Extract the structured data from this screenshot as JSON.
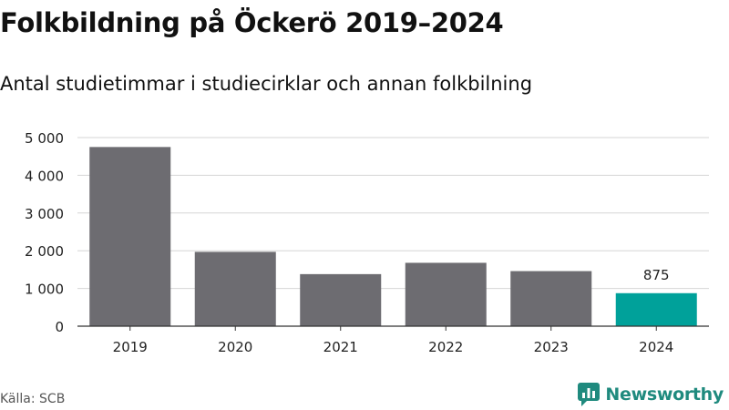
{
  "title": "Folkbildning på Öckerö 2019–2024",
  "subtitle": "Antal studietimmar i studiecirklar och annan folkbilning",
  "source": "Källa: SCB",
  "brand": {
    "name": "Newsworthy",
    "icon": "newsworthy-logo-icon",
    "color": "#1f8a7e"
  },
  "colors": {
    "bar": "#6d6c71",
    "highlight": "#00a19a",
    "grid": "#d6d6d6",
    "axis": "#333333"
  },
  "chart_data": {
    "type": "bar",
    "categories": [
      "2019",
      "2020",
      "2021",
      "2022",
      "2023",
      "2024"
    ],
    "values": [
      4750,
      1970,
      1380,
      1680,
      1460,
      875
    ],
    "highlight_index": 5,
    "data_labels": [
      null,
      null,
      null,
      null,
      null,
      "875"
    ],
    "ylim": [
      0,
      5000
    ],
    "yticks": [
      0,
      1000,
      2000,
      3000,
      4000,
      5000
    ],
    "ytick_labels": [
      "0",
      "1 000",
      "2 000",
      "3 000",
      "4 000",
      "5 000"
    ],
    "grid": true,
    "legend": "none",
    "xlabel": "",
    "ylabel": ""
  }
}
